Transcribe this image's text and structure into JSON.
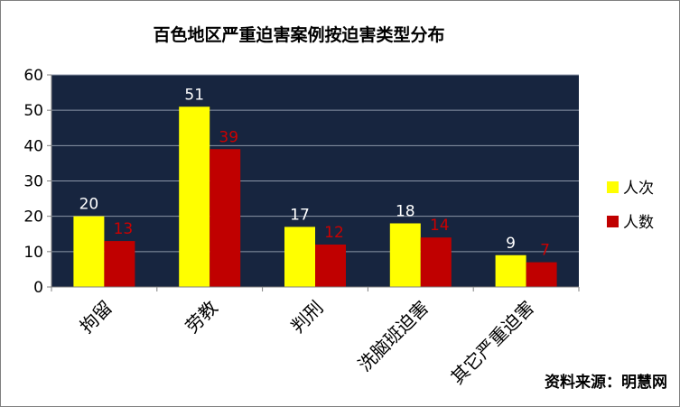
{
  "chart_data": {
    "type": "bar",
    "title": "百色地区严重迫害案例按迫害类型分布",
    "categories": [
      "拘留",
      "劳教",
      "判刑",
      "洗脑班迫害",
      "其它严重迫害"
    ],
    "series": [
      {
        "name": "人次",
        "values": [
          20,
          51,
          17,
          18,
          9
        ],
        "color": "#ffff00",
        "label_color": "#ffffff"
      },
      {
        "name": "人数",
        "values": [
          13,
          39,
          12,
          14,
          7
        ],
        "color": "#c00000",
        "label_color": "#cc0000"
      }
    ],
    "ylim": [
      0,
      60
    ],
    "yticks": [
      0,
      10,
      20,
      30,
      40,
      50,
      60
    ],
    "grid": true,
    "legend": "right",
    "plot_background": "#17253f",
    "source": "资料来源：明慧网"
  }
}
